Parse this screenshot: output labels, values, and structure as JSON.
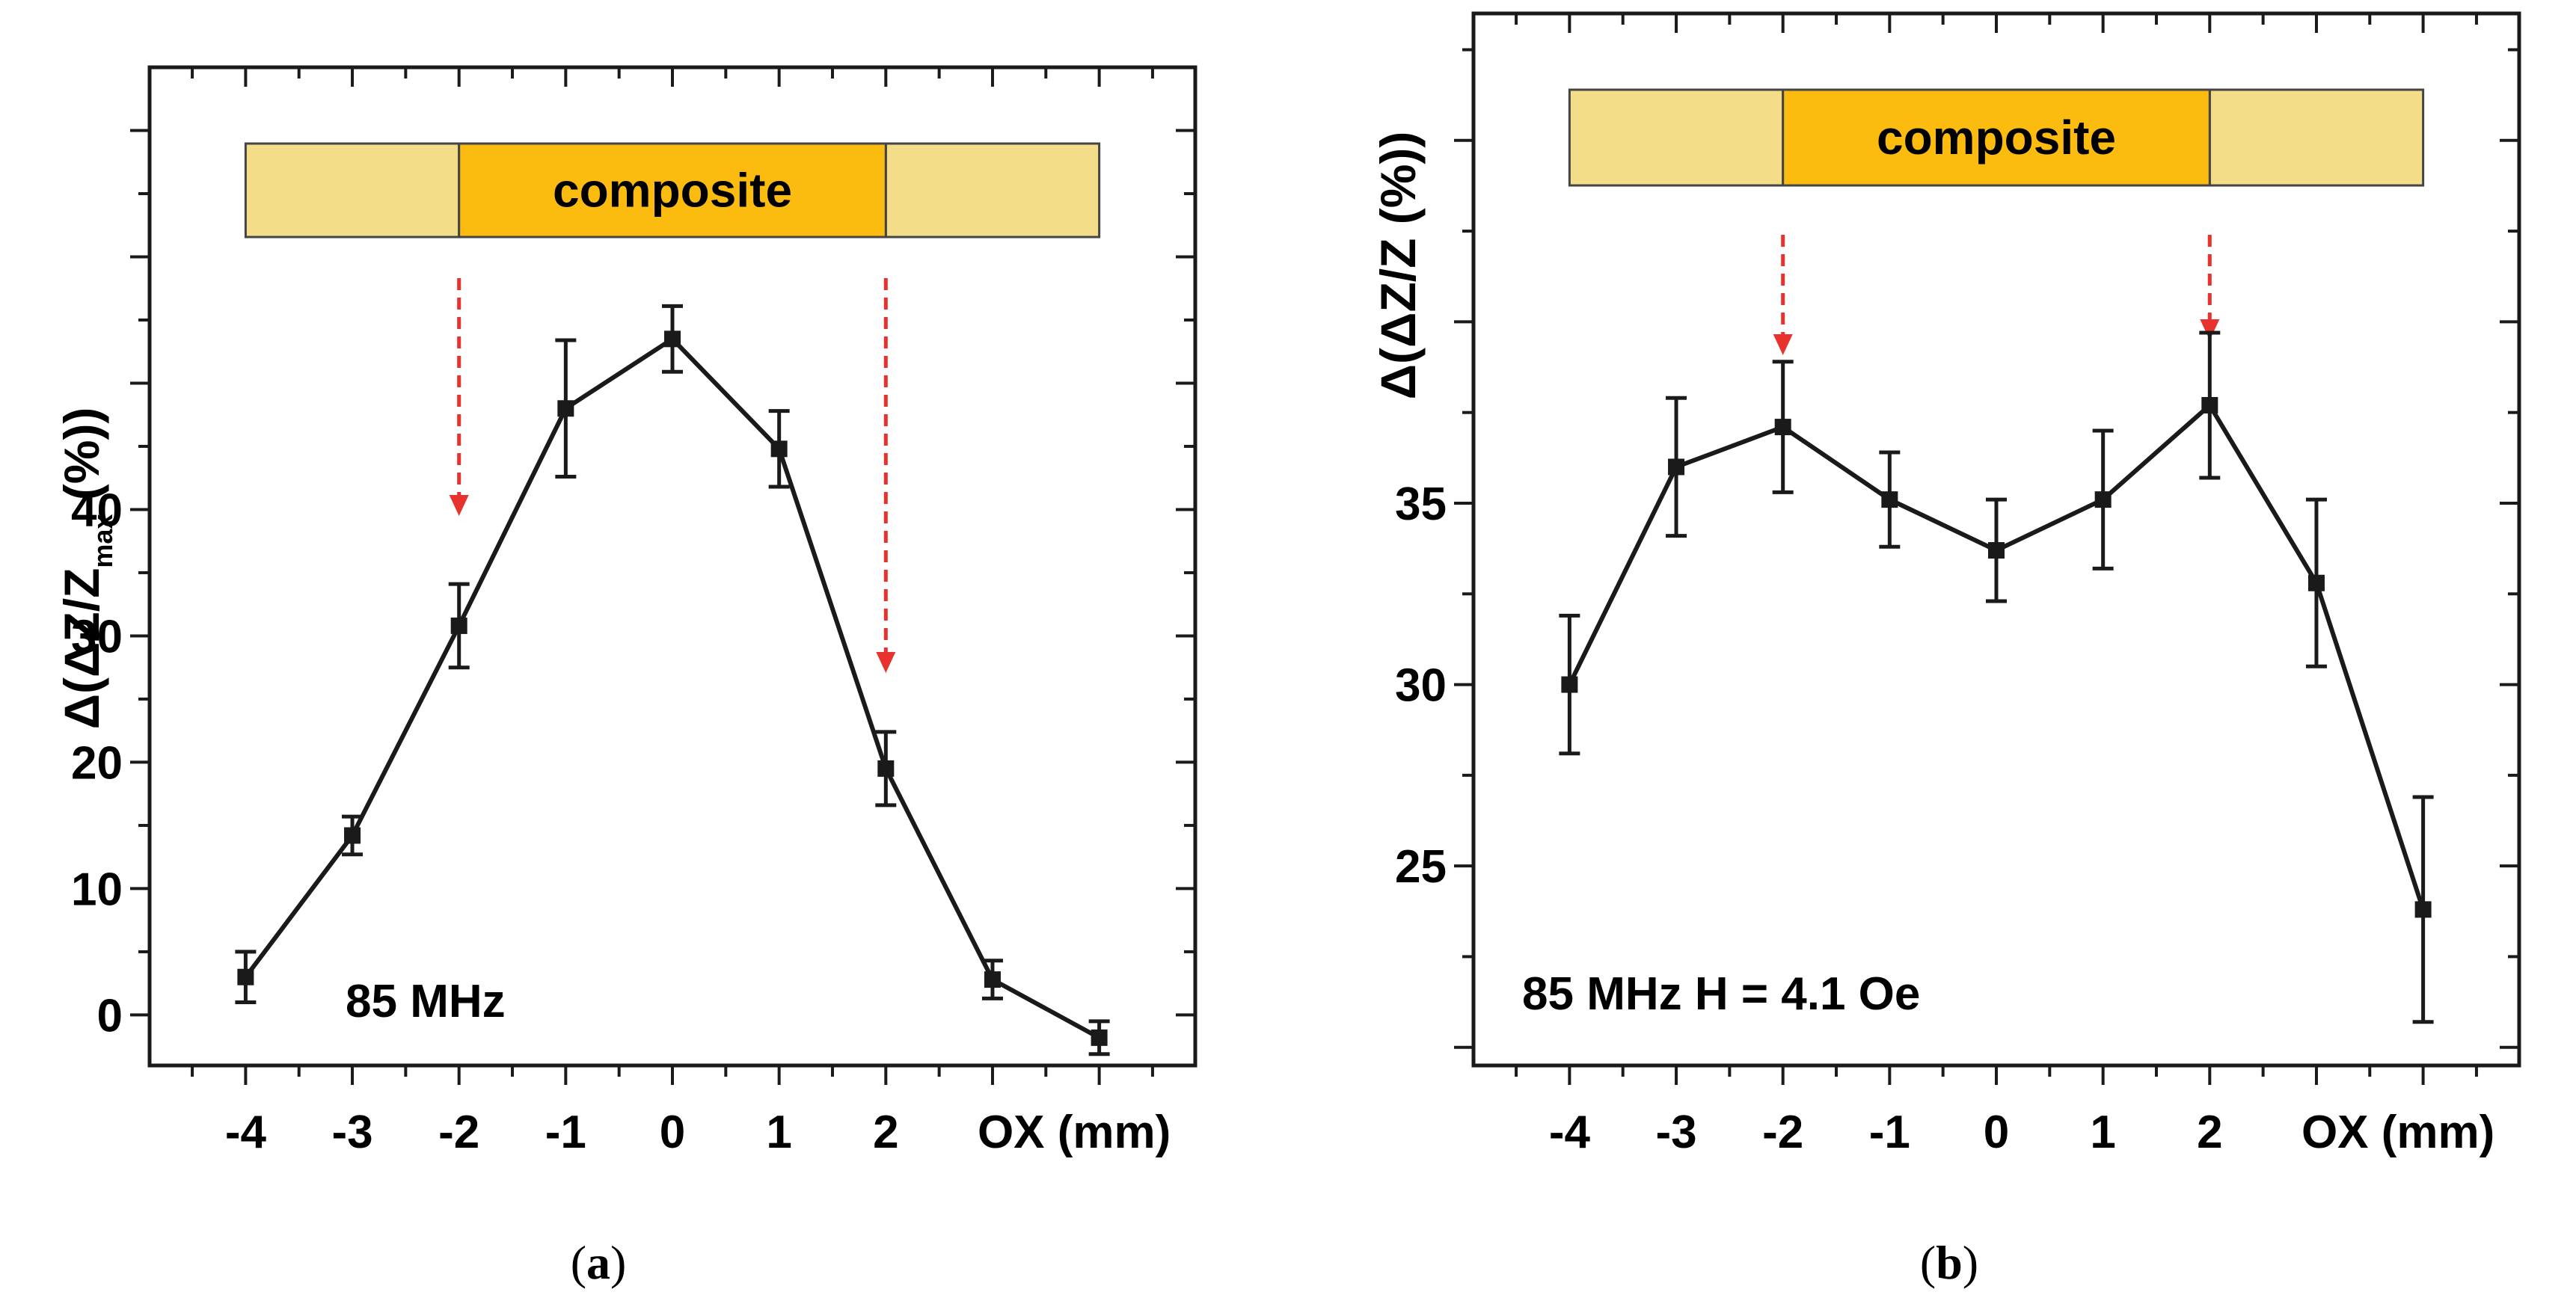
{
  "chart_data": [
    {
      "type": "line",
      "panel_label": {
        "open": "(",
        "letter": "a",
        "close": ")"
      },
      "ylabel": {
        "main": "Δ(ΔZ/Z",
        "sub": "max",
        "end": " (%))"
      },
      "xlabel": "OX (mm)",
      "annotation": "85 MHz",
      "bar_label": "composite",
      "x": [
        -4,
        -3,
        -2,
        -1,
        0,
        1,
        2,
        3,
        4
      ],
      "y": [
        3.0,
        14.2,
        30.8,
        48.0,
        53.5,
        44.8,
        19.5,
        2.8,
        -1.8
      ],
      "err": [
        2.0,
        1.5,
        3.3,
        5.4,
        2.6,
        3.0,
        2.9,
        1.5,
        1.3
      ],
      "xlim": [
        -4.9,
        4.9
      ],
      "ylim": [
        -4,
        75
      ],
      "xticks": [
        "-4",
        "-3",
        "-2",
        "-1",
        "0",
        "1",
        "2"
      ],
      "yticks": [
        "0",
        "10",
        "20",
        "30",
        "40"
      ],
      "arrows_at_x": [
        -2,
        2
      ],
      "composite_range_x": [
        -2,
        2
      ],
      "sample_range_x": [
        -4,
        4
      ],
      "colors": {
        "line": "#1a1a1a",
        "composite": "#fbbb0f",
        "sample": "#f3dd89",
        "arrow": "#e8322e"
      }
    },
    {
      "type": "line",
      "panel_label": {
        "open": "(",
        "letter": "b",
        "close": ")"
      },
      "ylabel": {
        "main": "Δ(ΔZ/Z",
        "sub": "",
        "end": " (%))"
      },
      "xlabel": "OX (mm)",
      "annotation": "85 MHz H = 4.1 Oe",
      "bar_label": "composite",
      "x": [
        -4,
        -3,
        -2,
        -1,
        0,
        1,
        2,
        3,
        4
      ],
      "y": [
        30.0,
        36.0,
        37.1,
        35.1,
        33.7,
        35.1,
        37.7,
        32.8,
        23.8
      ],
      "err": [
        1.9,
        1.9,
        1.8,
        1.3,
        1.4,
        1.9,
        2.0,
        2.3,
        3.1
      ],
      "xlim": [
        -4.9,
        4.9
      ],
      "ylim": [
        19.5,
        48.5
      ],
      "xticks": [
        "-4",
        "-3",
        "-2",
        "-1",
        "0",
        "1",
        "2"
      ],
      "yticks": [
        "25",
        "30",
        "35"
      ],
      "arrows_at_x": [
        -2,
        2
      ],
      "composite_range_x": [
        -2,
        2
      ],
      "sample_range_x": [
        -4,
        4
      ],
      "colors": {
        "line": "#1a1a1a",
        "composite": "#fbbb0f",
        "sample": "#f3dd89",
        "arrow": "#e8322e"
      }
    }
  ]
}
